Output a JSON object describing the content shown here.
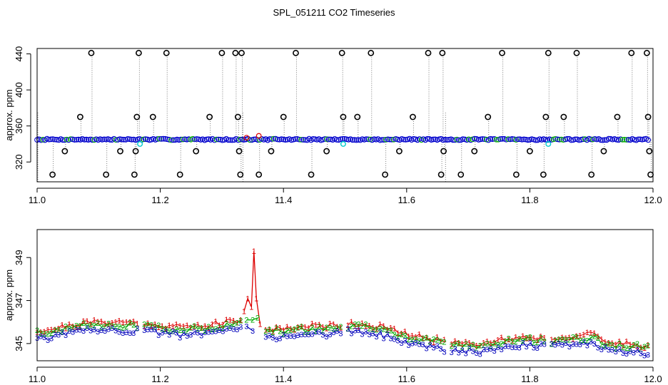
{
  "title": "SPL_051211  CO2 Timeseries",
  "chart_data": [
    {
      "type": "scatter",
      "panel": "top",
      "title": "SPL_051211  CO2 Timeseries",
      "xlabel": "",
      "ylabel": "approx. ppm",
      "xlim": [
        11.0,
        12.0
      ],
      "ylim": [
        298,
        446
      ],
      "xticks": [
        11.0,
        11.2,
        11.4,
        11.6,
        11.8,
        12.0
      ],
      "xtick_labels": [
        "11.0",
        "11.2",
        "11.4",
        "11.6",
        "11.8",
        "12.0"
      ],
      "yticks": [
        320,
        360,
        400,
        440
      ],
      "ytick_labels": [
        "320",
        "360",
        "400",
        "440"
      ],
      "baseline_level": 345,
      "series": [
        {
          "name": "baseline",
          "color": "#0000cc",
          "note": "dense blue circles along ~345 ppm"
        },
        {
          "name": "outliers",
          "color": "#000000",
          "x": [
            11.025,
            11.045,
            11.07,
            11.088,
            11.112,
            11.135,
            11.158,
            11.16,
            11.162,
            11.165,
            11.188,
            11.21,
            11.232,
            11.258,
            11.28,
            11.3,
            11.322,
            11.326,
            11.328,
            11.33,
            11.332,
            11.36,
            11.38,
            11.4,
            11.42,
            11.445,
            11.47,
            11.495,
            11.497,
            11.52,
            11.542,
            11.565,
            11.588,
            11.61,
            11.635,
            11.656,
            11.658,
            11.66,
            11.688,
            11.71,
            11.732,
            11.755,
            11.778,
            11.8,
            11.822,
            11.826,
            11.83,
            11.855,
            11.876,
            11.9,
            11.92,
            11.942,
            11.965,
            11.99,
            11.992,
            11.994,
            11.996
          ],
          "y": [
            306,
            332,
            370,
            441,
            306,
            332,
            306,
            332,
            370,
            441,
            370,
            441,
            306,
            332,
            370,
            441,
            441,
            370,
            332,
            306,
            441,
            306,
            332,
            370,
            441,
            306,
            332,
            441,
            370,
            370,
            441,
            306,
            332,
            370,
            441,
            306,
            441,
            332,
            306,
            332,
            370,
            441,
            306,
            332,
            306,
            370,
            441,
            370,
            441,
            306,
            332,
            370,
            441,
            441,
            370,
            332,
            306
          ]
        },
        {
          "name": "cyan markers",
          "color": "#00cccc",
          "x": [
            11.167,
            11.497,
            11.83
          ],
          "y": [
            340,
            340,
            340
          ]
        },
        {
          "name": "red markers",
          "color": "#dd0000",
          "x": [
            11.34,
            11.36
          ],
          "y": [
            347,
            349
          ]
        }
      ]
    },
    {
      "type": "line",
      "panel": "bottom",
      "xlabel": "",
      "ylabel": "approx. ppm",
      "xlim": [
        11.0,
        12.0
      ],
      "ylim": [
        344.2,
        350.3
      ],
      "xticks": [
        11.0,
        11.2,
        11.4,
        11.6,
        11.8,
        12.0
      ],
      "xtick_labels": [
        "11.0",
        "11.2",
        "11.4",
        "11.6",
        "11.8",
        "12.0"
      ],
      "yticks": [
        345,
        347,
        349
      ],
      "ytick_labels": [
        "345",
        "347",
        "349"
      ],
      "gap_starts": [
        11.168,
        11.333,
        11.497,
        11.662,
        11.829,
        11.993
      ],
      "series": [
        {
          "name": "1",
          "color": "#dd0000",
          "offset": 0.12
        },
        {
          "name": "2",
          "color": "#00aa00",
          "offset": 0.0
        },
        {
          "name": "3",
          "color": "#0000bb",
          "offset": -0.25
        }
      ],
      "trend": {
        "x": [
          11.0,
          11.02,
          11.05,
          11.08,
          11.12,
          11.16,
          11.17,
          11.2,
          11.24,
          11.28,
          11.3,
          11.32,
          11.333,
          11.34,
          11.36,
          11.4,
          11.45,
          11.497,
          11.5,
          11.53,
          11.56,
          11.6,
          11.64,
          11.662,
          11.68,
          11.72,
          11.76,
          11.8,
          11.829,
          11.86,
          11.9,
          11.93,
          11.96,
          11.99
        ],
        "y": [
          345.5,
          345.55,
          345.7,
          345.85,
          345.9,
          345.85,
          345.8,
          345.75,
          345.65,
          345.75,
          345.85,
          345.9,
          345.95,
          345.6,
          345.55,
          345.6,
          345.7,
          345.75,
          345.8,
          345.8,
          345.65,
          345.3,
          345.1,
          345.0,
          344.95,
          344.9,
          345.1,
          345.2,
          345.1,
          345.2,
          345.3,
          344.9,
          344.9,
          344.8
        ]
      },
      "spike_series_1": {
        "x": [
          11.336,
          11.342,
          11.348,
          11.352,
          11.356,
          11.362
        ],
        "y": [
          346.5,
          347.1,
          346.7,
          349.3,
          347.1,
          345.9
        ]
      },
      "spike_series_2": {
        "x": [
          11.34,
          11.35,
          11.358
        ],
        "y": [
          346.1,
          346.1,
          346.2
        ]
      },
      "spike_series_3": {
        "x": [
          11.34,
          11.35
        ],
        "y": [
          345.8,
          345.6
        ]
      }
    }
  ]
}
